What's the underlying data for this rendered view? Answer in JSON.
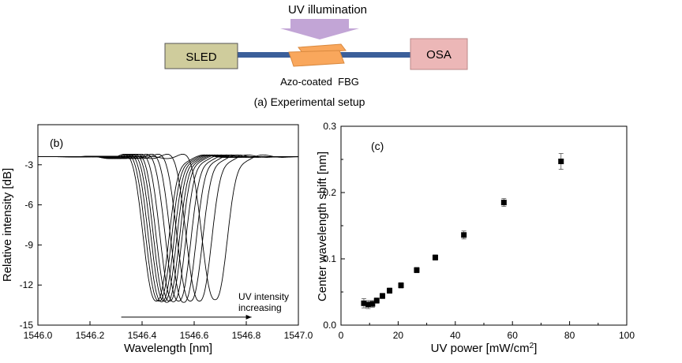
{
  "setup": {
    "uv_label": "UV illumination",
    "sled_label": "SLED",
    "osa_label": "OSA",
    "fbg_label": "Azo-coated  FBG",
    "caption": "(a) Experimental setup",
    "colors": {
      "sled_fill": "#cfcc9c",
      "osa_fill": "#ecb7b7",
      "fiber": "#3b5f9a",
      "fbg_fill": "#f9a75c",
      "uv_arrow": "#c2a5d6"
    }
  },
  "chart_data": [
    {
      "type": "line",
      "panel_label": "(b)",
      "xlabel": "Wavelength [nm]",
      "ylabel": "Relative intensity [dB]",
      "xlim": [
        1546.0,
        1547.0
      ],
      "ylim": [
        -15,
        0
      ],
      "xticks": [
        1546.0,
        1546.2,
        1546.4,
        1546.6,
        1546.8,
        1547.0
      ],
      "xtick_labels": [
        "1546.0",
        "1546.2",
        "1546.4",
        "1546.6",
        "1546.8",
        "1547.0"
      ],
      "yticks": [
        -3,
        -6,
        -9,
        -12,
        -15
      ],
      "ytick_labels": [
        "-3",
        "-6",
        "-9",
        "-12",
        "-15"
      ],
      "baseline": -2.4,
      "annotation": [
        "UV intensity",
        "increasing"
      ],
      "arrow_x": [
        1546.32,
        1546.82
      ],
      "arrow_y": -14.4,
      "series": [
        {
          "center": 1546.455,
          "depth": -13.2
        },
        {
          "center": 1546.465,
          "depth": -13.2
        },
        {
          "center": 1546.475,
          "depth": -13.25
        },
        {
          "center": 1546.485,
          "depth": -13.2
        },
        {
          "center": 1546.495,
          "depth": -13.3
        },
        {
          "center": 1546.505,
          "depth": -13.2
        },
        {
          "center": 1546.52,
          "depth": -13.25
        },
        {
          "center": 1546.54,
          "depth": -13.2
        },
        {
          "center": 1546.56,
          "depth": -13.3
        },
        {
          "center": 1546.585,
          "depth": -13.2
        },
        {
          "center": 1546.62,
          "depth": -13.2
        },
        {
          "center": 1546.68,
          "depth": -13.1
        }
      ],
      "grid": false
    },
    {
      "type": "scatter",
      "panel_label": "(c)",
      "xlabel": "UV power [mW/cm",
      "xlabel_sup": "2",
      "xlabel_end": "]",
      "ylabel": "Center wavelength shift [nm]",
      "xlim": [
        0,
        100
      ],
      "ylim": [
        0,
        0.3
      ],
      "xticks": [
        0,
        20,
        40,
        60,
        80,
        100
      ],
      "xtick_labels": [
        "0",
        "20",
        "40",
        "60",
        "80",
        "100"
      ],
      "yticks": [
        0.0,
        0.1,
        0.2,
        0.3
      ],
      "ytick_labels": [
        "0.0",
        "0.1",
        "0.2",
        "0.3"
      ],
      "points": [
        {
          "x": 8,
          "y": 0.033,
          "err": 0.007
        },
        {
          "x": 9.5,
          "y": 0.031,
          "err": 0.006
        },
        {
          "x": 11,
          "y": 0.032,
          "err": 0.005
        },
        {
          "x": 12.5,
          "y": 0.037,
          "err": 0.004
        },
        {
          "x": 14.5,
          "y": 0.044,
          "err": 0.004
        },
        {
          "x": 17,
          "y": 0.052,
          "err": 0.004
        },
        {
          "x": 21,
          "y": 0.06,
          "err": 0.004
        },
        {
          "x": 26.5,
          "y": 0.083,
          "err": 0.004
        },
        {
          "x": 33,
          "y": 0.102,
          "err": 0.004
        },
        {
          "x": 43,
          "y": 0.136,
          "err": 0.006
        },
        {
          "x": 57,
          "y": 0.185,
          "err": 0.006
        },
        {
          "x": 77,
          "y": 0.247,
          "err": 0.012
        }
      ],
      "grid": false
    }
  ]
}
